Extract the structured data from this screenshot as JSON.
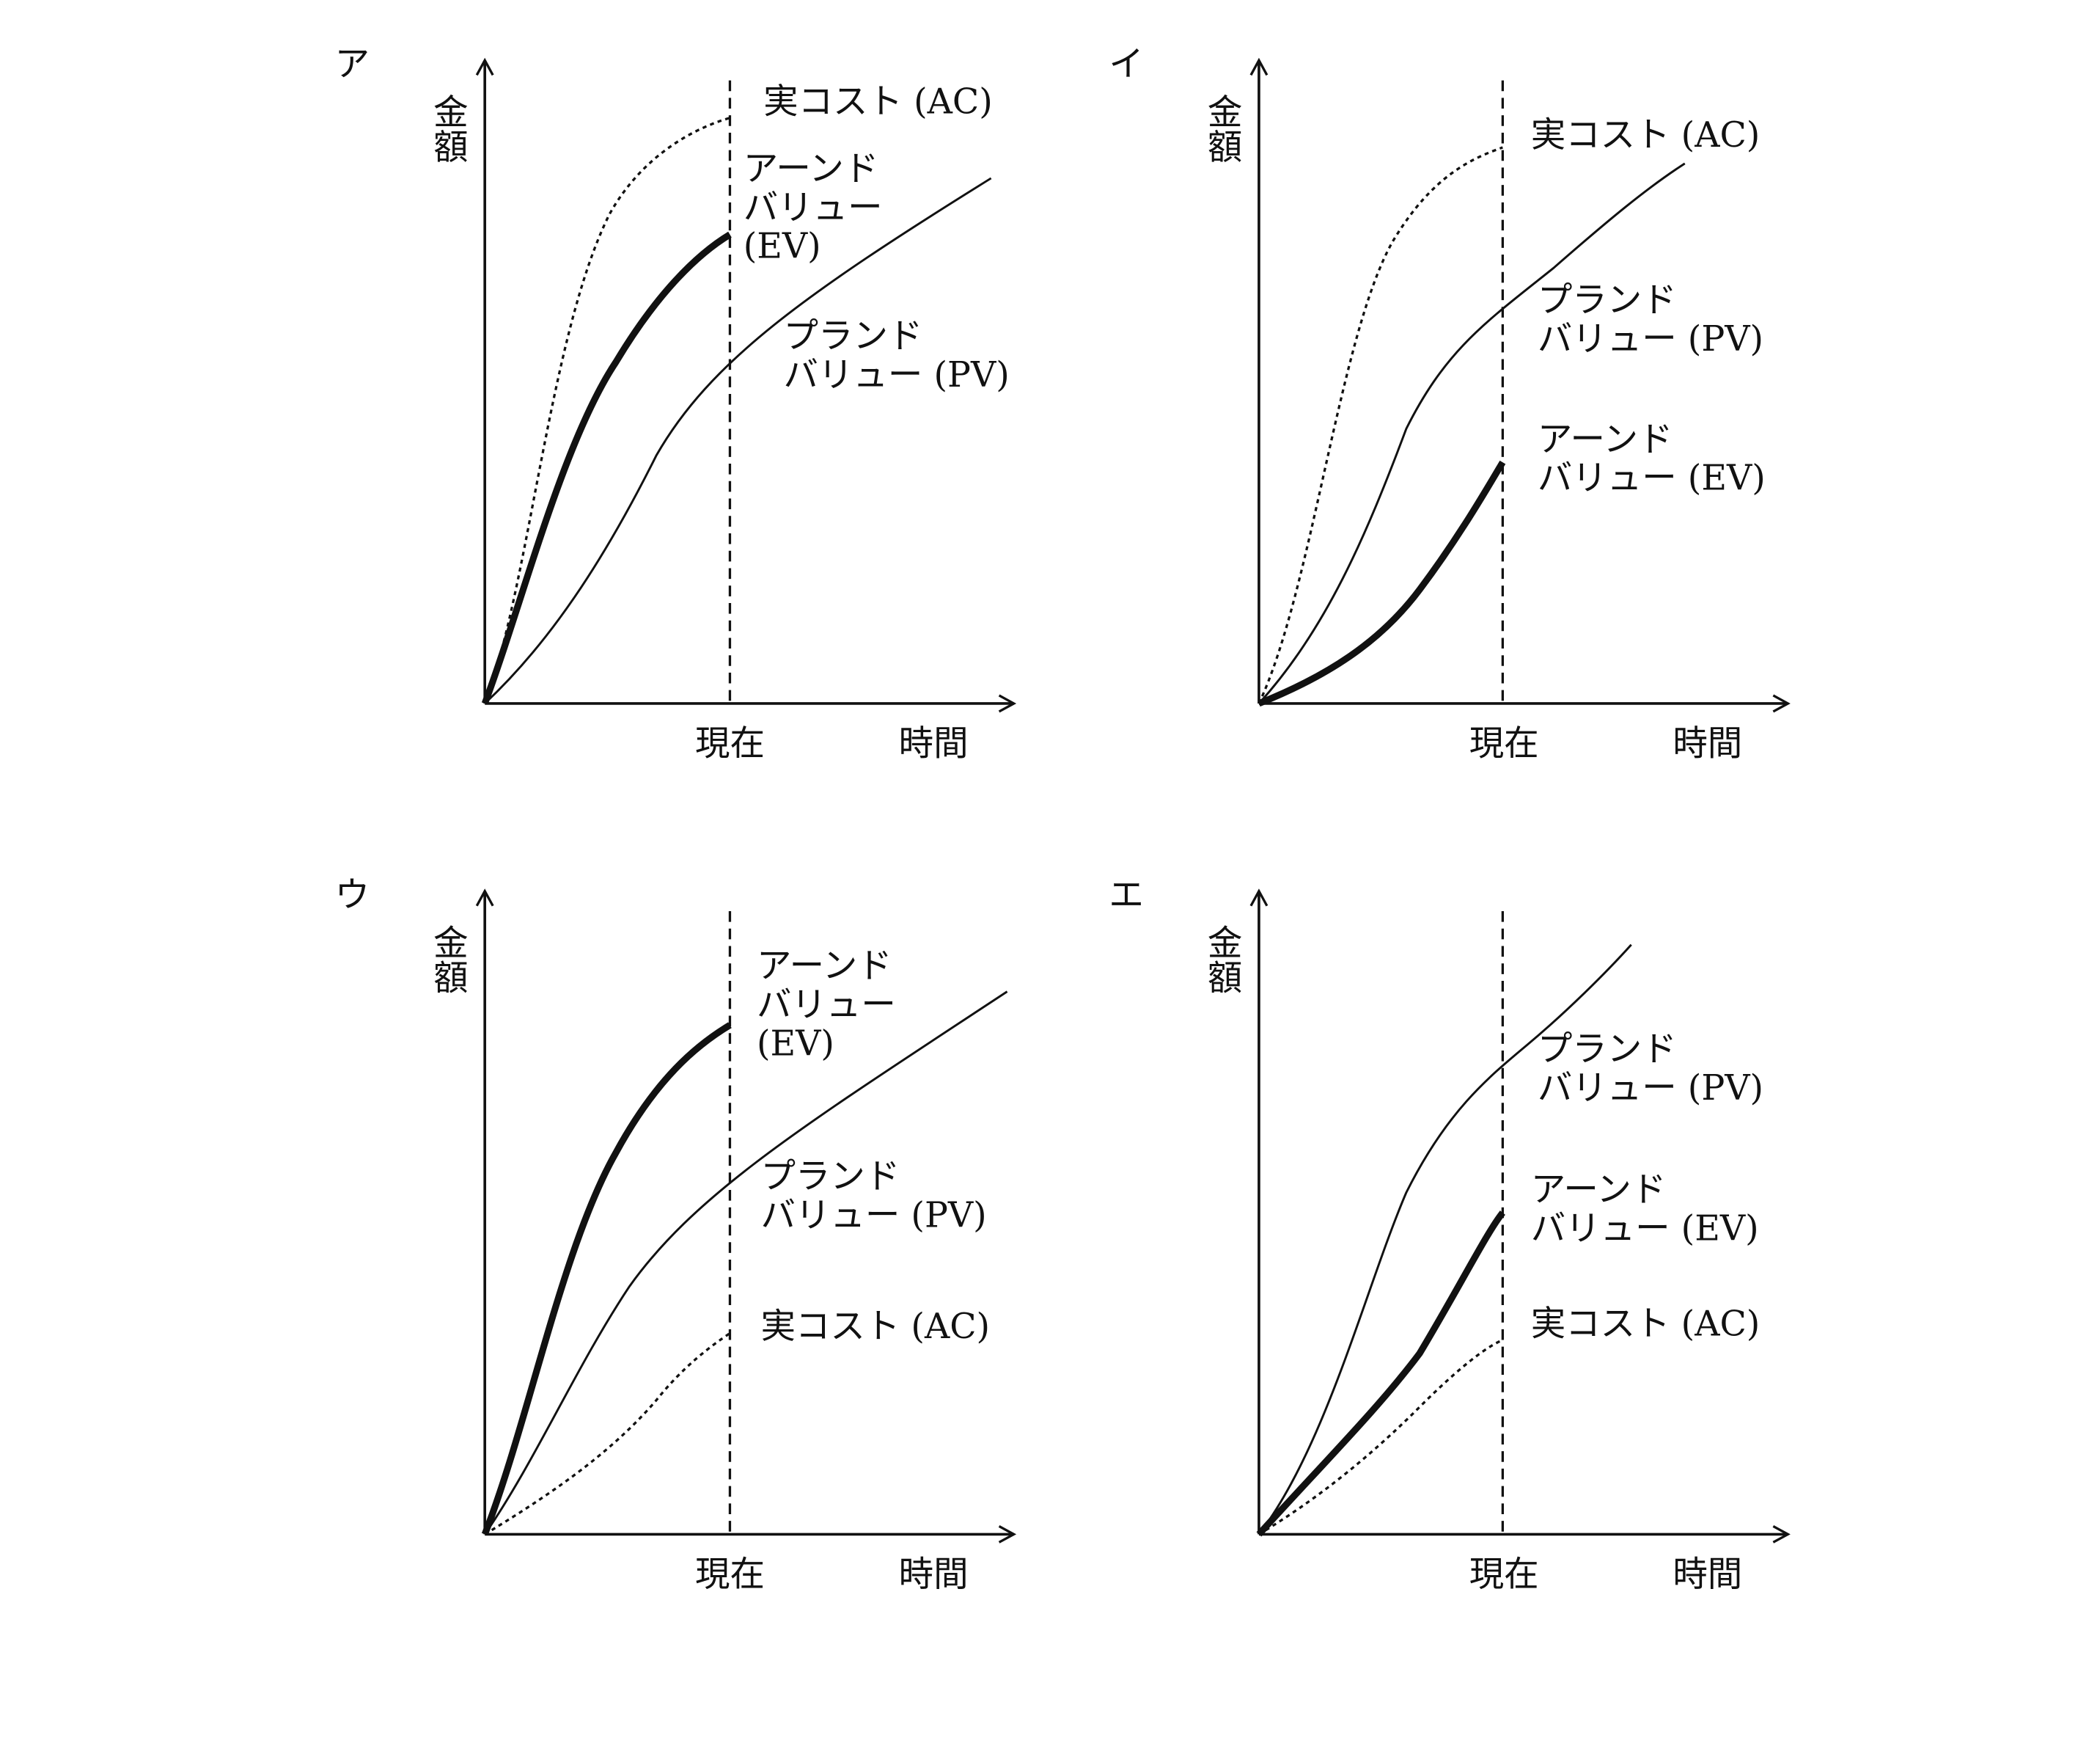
{
  "panels": [
    {
      "label": "ア",
      "y_axis_label": "金額",
      "x_labels": [
        "現在",
        "時間"
      ],
      "annotations": [
        {
          "lines": [
            "実コスト (AC)"
          ]
        },
        {
          "lines": [
            "アーンド",
            "バリュー",
            "(EV)"
          ]
        },
        {
          "lines": [
            "プランド",
            "バリュー (PV)"
          ]
        }
      ]
    },
    {
      "label": "イ",
      "y_axis_label": "金額",
      "x_labels": [
        "現在",
        "時間"
      ],
      "annotations": [
        {
          "lines": [
            "実コスト (AC)"
          ]
        },
        {
          "lines": [
            "プランド",
            "バリュー (PV)"
          ]
        },
        {
          "lines": [
            "アーンド",
            "バリュー (EV)"
          ]
        }
      ]
    },
    {
      "label": "ウ",
      "y_axis_label": "金額",
      "x_labels": [
        "現在",
        "時間"
      ],
      "annotations": [
        {
          "lines": [
            "アーンド",
            "バリュー",
            "(EV)"
          ]
        },
        {
          "lines": [
            "プランド",
            "バリュー (PV)"
          ]
        },
        {
          "lines": [
            "実コスト (AC)"
          ]
        }
      ]
    },
    {
      "label": "エ",
      "y_axis_label": "金額",
      "x_labels": [
        "現在",
        "時間"
      ],
      "annotations": [
        {
          "lines": [
            "プランド",
            "バリュー (PV)"
          ]
        },
        {
          "lines": [
            "アーンド",
            "バリュー (EV)"
          ]
        },
        {
          "lines": [
            "実コスト (AC)"
          ]
        }
      ]
    }
  ]
}
